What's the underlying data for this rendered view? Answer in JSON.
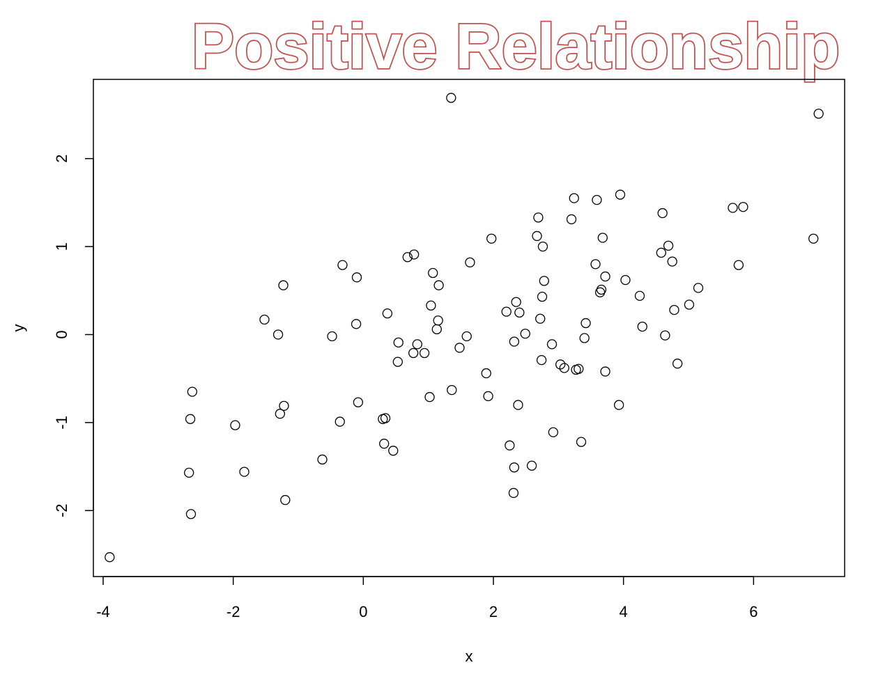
{
  "chart_data": {
    "type": "scatter",
    "title": "Positive Relationship",
    "xlabel": "x",
    "ylabel": "y",
    "xlim": [
      -4.15,
      7.4
    ],
    "ylim": [
      -2.75,
      2.9
    ],
    "x_ticks": [
      -4,
      -2,
      0,
      2,
      4,
      6
    ],
    "y_ticks": [
      -2,
      -1,
      0,
      1,
      2
    ],
    "x_tick_labels": [
      "-4",
      "-2",
      "0",
      "2",
      "4",
      "6"
    ],
    "y_tick_labels": [
      "-2",
      "-1",
      "0",
      "1",
      "2"
    ],
    "grid": false,
    "title_color": "#c0504d",
    "x": [
      -3.9,
      -2.68,
      -2.65,
      -2.63,
      -2.66,
      -1.97,
      -1.83,
      -1.52,
      -1.31,
      -1.28,
      -1.22,
      -1.23,
      -1.2,
      -0.63,
      -0.48,
      -0.36,
      -0.32,
      -0.11,
      -0.1,
      -0.08,
      0.3,
      0.32,
      0.34,
      0.37,
      0.46,
      0.53,
      0.54,
      0.68,
      0.77,
      0.78,
      0.83,
      0.94,
      1.02,
      1.04,
      1.07,
      1.13,
      1.15,
      1.16,
      1.35,
      1.36,
      1.48,
      1.59,
      1.64,
      1.89,
      1.92,
      1.97,
      2.2,
      2.25,
      2.31,
      2.32,
      2.32,
      2.35,
      2.38,
      2.4,
      2.49,
      2.59,
      2.67,
      2.69,
      2.72,
      2.74,
      2.75,
      2.76,
      2.78,
      2.9,
      2.92,
      3.03,
      3.09,
      3.2,
      3.24,
      3.27,
      3.31,
      3.35,
      3.4,
      3.42,
      3.57,
      3.59,
      3.64,
      3.66,
      3.68,
      3.72,
      3.72,
      3.93,
      3.95,
      4.03,
      4.25,
      4.29,
      4.58,
      4.6,
      4.64,
      4.69,
      4.75,
      4.78,
      4.83,
      5.01,
      5.15,
      5.68,
      5.77,
      5.84,
      6.92,
      7.0
    ],
    "y": [
      -2.53,
      -1.57,
      -2.04,
      -0.65,
      -0.96,
      -1.03,
      -1.56,
      0.17,
      0.0,
      -0.9,
      -0.81,
      0.56,
      -1.88,
      -1.42,
      -0.02,
      -0.99,
      0.79,
      0.12,
      0.65,
      -0.77,
      -0.96,
      -1.24,
      -0.95,
      0.24,
      -1.32,
      -0.31,
      -0.09,
      0.88,
      -0.21,
      0.91,
      -0.11,
      -0.21,
      -0.71,
      0.33,
      0.7,
      0.06,
      0.16,
      0.56,
      2.69,
      -0.63,
      -0.15,
      -0.02,
      0.82,
      -0.44,
      -0.7,
      1.09,
      0.26,
      -1.26,
      -1.8,
      -1.51,
      -0.08,
      0.37,
      -0.8,
      0.25,
      0.01,
      -1.49,
      1.12,
      1.33,
      0.18,
      -0.29,
      0.43,
      1.0,
      0.61,
      -0.11,
      -1.11,
      -0.34,
      -0.38,
      1.31,
      1.55,
      -0.4,
      -0.39,
      -1.22,
      -0.04,
      0.13,
      0.8,
      1.53,
      0.48,
      0.51,
      1.1,
      0.66,
      -0.42,
      -0.8,
      1.59,
      0.62,
      0.44,
      0.09,
      0.93,
      1.38,
      -0.01,
      1.01,
      0.83,
      0.28,
      -0.33,
      0.34,
      0.53,
      1.44,
      0.79,
      1.45,
      1.09,
      2.51
    ]
  }
}
